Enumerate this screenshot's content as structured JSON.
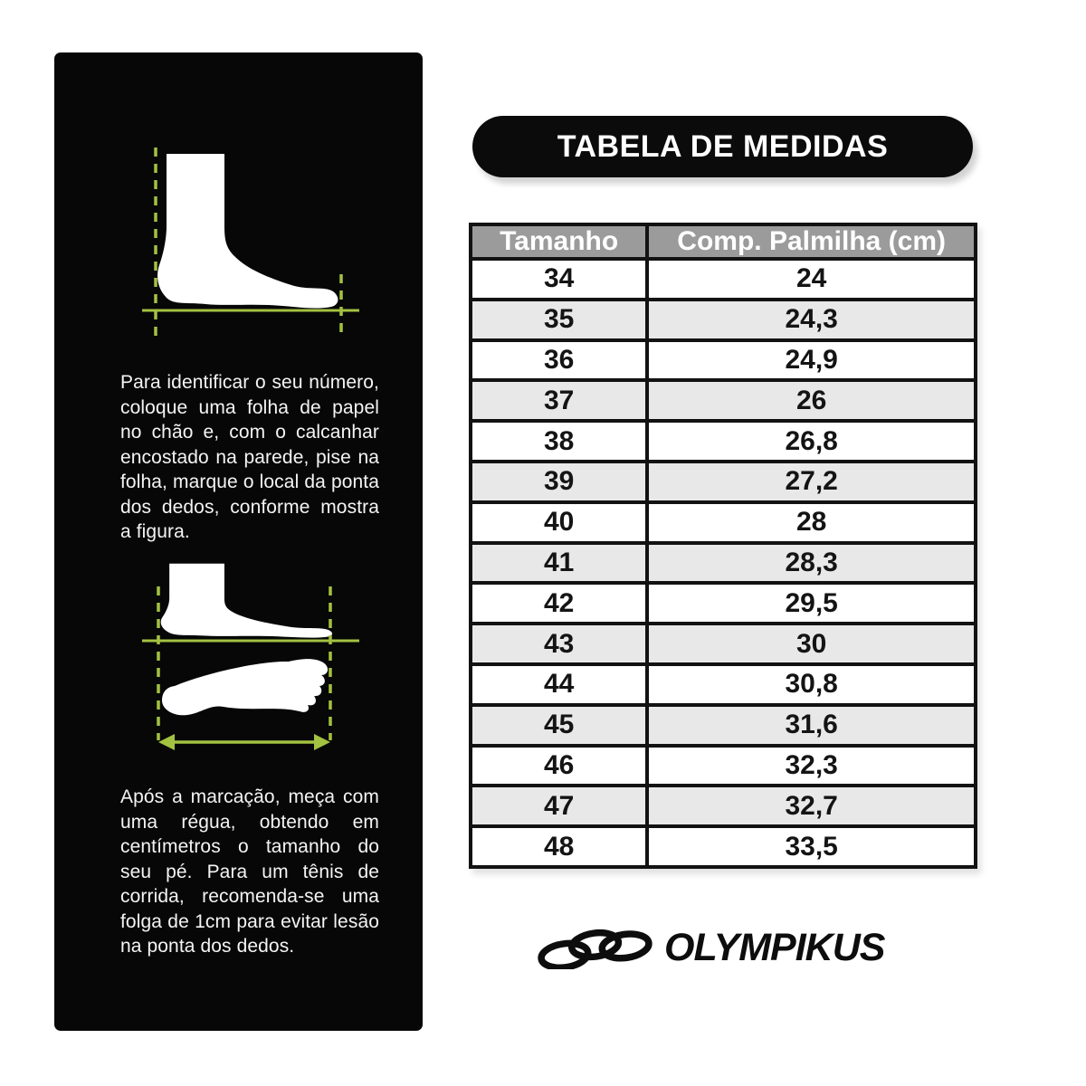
{
  "title": "TABELA DE MEDIDAS",
  "instructions": {
    "step1": "Para identificar o seu número, coloque uma folha de papel no chão e, com o calcanhar encostado na parede, pise na folha, marque o local da ponta dos dedos, conforme mostra a figura.",
    "step2": "Após a marcação, meça com uma régua, obtendo em centímetros o tamanho do seu pé. Para um tênis de corrida, recomenda-se uma folga de 1cm para evitar lesão na ponta dos dedos."
  },
  "table": {
    "headers": [
      "Tamanho",
      "Comp. Palmilha (cm)"
    ],
    "rows": [
      [
        "34",
        "24"
      ],
      [
        "35",
        "24,3"
      ],
      [
        "36",
        "24,9"
      ],
      [
        "37",
        "26"
      ],
      [
        "38",
        "26,8"
      ],
      [
        "39",
        "27,2"
      ],
      [
        "40",
        "28"
      ],
      [
        "41",
        "28,3"
      ],
      [
        "42",
        "29,5"
      ],
      [
        "43",
        "30"
      ],
      [
        "44",
        "30,8"
      ],
      [
        "45",
        "31,6"
      ],
      [
        "46",
        "32,3"
      ],
      [
        "47",
        "32,7"
      ],
      [
        "48",
        "33,5"
      ]
    ]
  },
  "brand": {
    "name": "OLYMPIKUS"
  },
  "colors": {
    "accent_green": "#a3c241",
    "panel_black": "#070707",
    "header_gray": "#9b9b9b",
    "row_alt_gray": "#e8e8e8"
  },
  "chart_data": {
    "type": "table",
    "title": "TABELA DE MEDIDAS",
    "columns": [
      "Tamanho",
      "Comp. Palmilha (cm)"
    ],
    "sizes": [
      34,
      35,
      36,
      37,
      38,
      39,
      40,
      41,
      42,
      43,
      44,
      45,
      46,
      47,
      48
    ],
    "insole_length_cm": [
      24,
      24.3,
      24.9,
      26,
      26.8,
      27.2,
      28,
      28.3,
      29.5,
      30,
      30.8,
      31.6,
      32.3,
      32.7,
      33.5
    ],
    "layout": "header row gray, alternating white/light-gray rows, black 4px grid borders"
  }
}
